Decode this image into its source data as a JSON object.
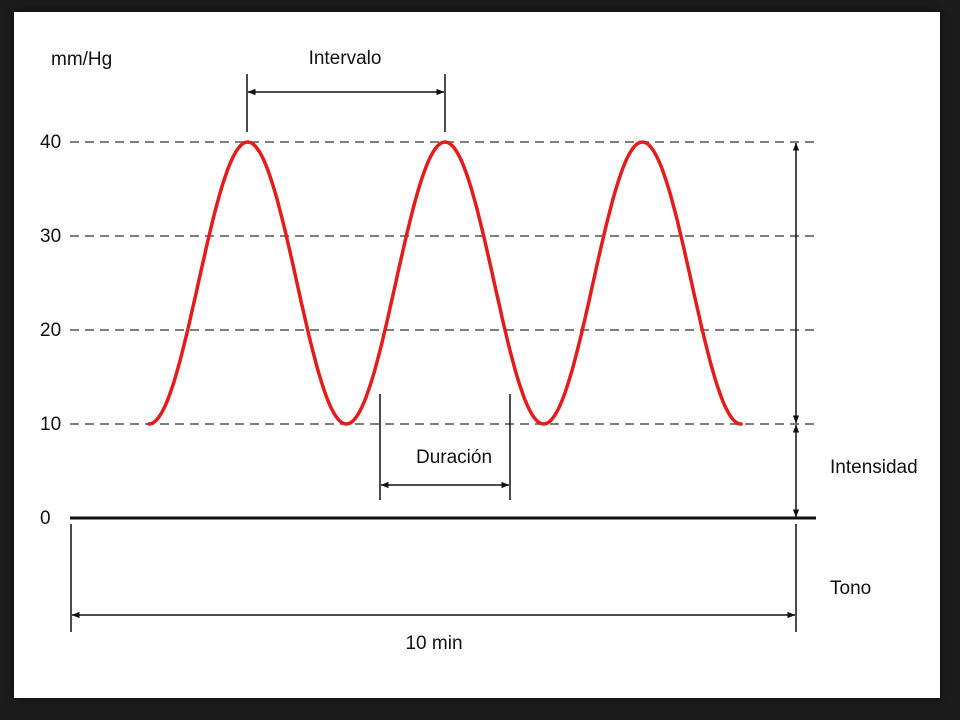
{
  "diagram": {
    "y_unit": "mm/Hg",
    "y_ticks": [
      "40",
      "30",
      "20",
      "10",
      "0"
    ],
    "labels": {
      "interval": "Intervalo",
      "duration": "Duración",
      "intensity": "Intensidad",
      "tone": "Tono",
      "time_span": "10 min"
    },
    "colors": {
      "wave": "#e41c1c",
      "gridline": "#555555",
      "axis": "#111111"
    },
    "wave": {
      "baseline_value": 10,
      "peak_value": 40,
      "contraction_count": 3
    }
  }
}
